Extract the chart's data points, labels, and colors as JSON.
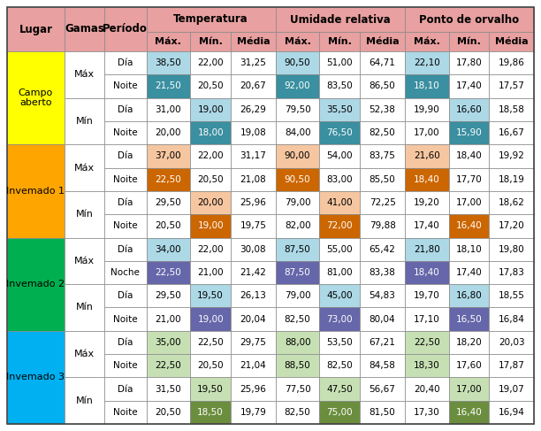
{
  "lugares": [
    "Campo\naberto",
    "Invemado 1",
    "Invemado 2",
    "Invemado 3"
  ],
  "lugar_colors": [
    "#ffff00",
    "#ffa500",
    "#00b050",
    "#00b0f0"
  ],
  "gamas_labels": [
    "Máx",
    "Mín",
    "Máx",
    "Mín",
    "Máx",
    "Mín",
    "Máx",
    "Mín"
  ],
  "header_bg": "#e8a0a0",
  "rows": [
    [
      "Día",
      "38,50",
      "22,00",
      "31,25",
      "90,50",
      "51,00",
      "64,71",
      "22,10",
      "17,80",
      "19,86"
    ],
    [
      "Noite",
      "21,50",
      "20,50",
      "20,67",
      "92,00",
      "83,50",
      "86,50",
      "18,10",
      "17,40",
      "17,57"
    ],
    [
      "Día",
      "31,00",
      "19,00",
      "26,29",
      "79,50",
      "35,50",
      "52,38",
      "19,90",
      "16,60",
      "18,58"
    ],
    [
      "Noite",
      "20,00",
      "18,00",
      "19,08",
      "84,00",
      "76,50",
      "82,50",
      "17,00",
      "15,90",
      "16,67"
    ],
    [
      "Día",
      "37,00",
      "22,00",
      "31,17",
      "90,00",
      "54,00",
      "83,75",
      "21,60",
      "18,40",
      "19,92"
    ],
    [
      "Noite",
      "22,50",
      "20,50",
      "21,08",
      "90,50",
      "83,00",
      "85,50",
      "18,40",
      "17,70",
      "18,19"
    ],
    [
      "Día",
      "29,50",
      "20,00",
      "25,96",
      "79,00",
      "41,00",
      "72,25",
      "19,20",
      "17,00",
      "18,62"
    ],
    [
      "Noite",
      "20,50",
      "19,00",
      "19,75",
      "82,00",
      "72,00",
      "79,88",
      "17,40",
      "16,40",
      "17,20"
    ],
    [
      "Día",
      "34,00",
      "22,00",
      "30,08",
      "87,50",
      "55,00",
      "65,42",
      "21,80",
      "18,10",
      "19,80"
    ],
    [
      "Noche",
      "22,50",
      "21,00",
      "21,42",
      "87,50",
      "81,00",
      "83,38",
      "18,40",
      "17,40",
      "17,83"
    ],
    [
      "Día",
      "29,50",
      "19,50",
      "26,13",
      "79,00",
      "45,00",
      "54,83",
      "19,70",
      "16,80",
      "18,55"
    ],
    [
      "Noite",
      "21,00",
      "19,00",
      "20,04",
      "82,50",
      "73,00",
      "80,04",
      "17,10",
      "16,50",
      "16,84"
    ],
    [
      "Día",
      "35,00",
      "22,50",
      "29,75",
      "88,00",
      "53,50",
      "67,21",
      "22,50",
      "18,20",
      "20,03"
    ],
    [
      "Noite",
      "22,50",
      "20,50",
      "21,04",
      "88,50",
      "82,50",
      "84,58",
      "18,30",
      "17,60",
      "17,87"
    ],
    [
      "Día",
      "31,50",
      "19,50",
      "25,96",
      "77,50",
      "47,50",
      "56,67",
      "20,40",
      "17,00",
      "19,07"
    ],
    [
      "Noite",
      "20,50",
      "18,50",
      "19,79",
      "82,50",
      "75,00",
      "81,50",
      "17,30",
      "16,40",
      "16,94"
    ]
  ],
  "cell_highlights": {
    "0,1": "#add8e6",
    "0,4": "#add8e6",
    "0,7": "#add8e6",
    "1,1": "#3a8fa0",
    "1,4": "#3a8fa0",
    "1,7": "#3a8fa0",
    "2,2": "#add8e6",
    "2,5": "#add8e6",
    "2,8": "#add8e6",
    "3,2": "#3a8fa0",
    "3,5": "#3a8fa0",
    "3,8": "#3a8fa0",
    "4,1": "#f5c6a0",
    "4,4": "#f5c6a0",
    "4,7": "#f5c6a0",
    "5,1": "#cc6600",
    "5,4": "#cc6600",
    "5,7": "#cc6600",
    "6,2": "#f5c6a0",
    "6,5": "#f5c6a0",
    "7,2": "#cc6600",
    "7,5": "#cc6600",
    "7,8": "#cc6600",
    "8,1": "#add8e6",
    "8,4": "#add8e6",
    "8,7": "#add8e6",
    "9,1": "#6666aa",
    "9,4": "#6666aa",
    "9,7": "#6666aa",
    "10,2": "#add8e6",
    "10,5": "#add8e6",
    "10,8": "#add8e6",
    "11,2": "#6666aa",
    "11,5": "#6666aa",
    "11,8": "#6666aa",
    "12,1": "#c6e0b4",
    "12,4": "#c6e0b4",
    "12,7": "#c6e0b4",
    "13,1": "#c6e0b4",
    "13,4": "#c6e0b4",
    "13,7": "#c6e0b4",
    "14,2": "#c6e0b4",
    "14,5": "#c6e0b4",
    "14,8": "#c6e0b4",
    "15,2": "#6b8e3e",
    "15,5": "#6b8e3e",
    "15,8": "#6b8e3e"
  },
  "dark_colors": [
    "#3a8fa0",
    "#cc6600",
    "#6666aa",
    "#6b8e3e"
  ]
}
